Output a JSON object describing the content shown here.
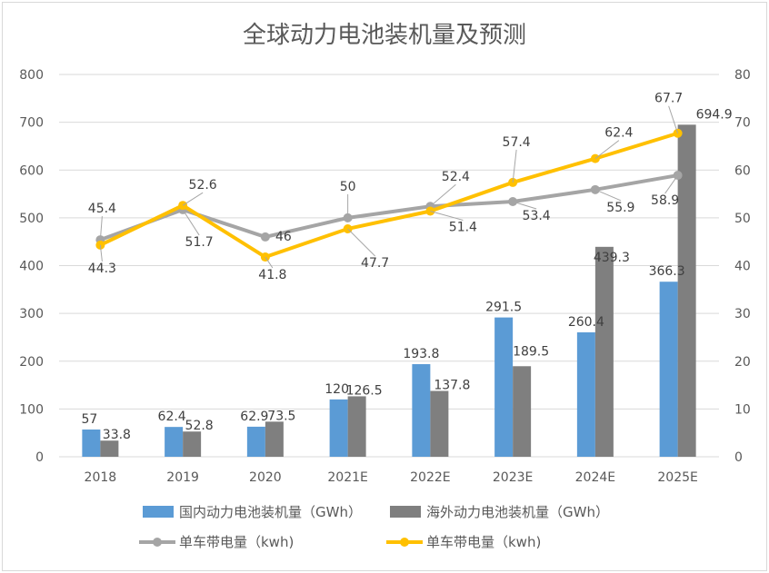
{
  "chart_data": {
    "type": "bar",
    "title": "全球动力电池装机量及预测",
    "categories": [
      "2018",
      "2019",
      "2020",
      "2021E",
      "2022E",
      "2023E",
      "2024E",
      "2025E"
    ],
    "ylim_left": [
      0,
      800
    ],
    "yticks_left": [
      "0",
      "100",
      "200",
      "300",
      "400",
      "500",
      "600",
      "700",
      "800"
    ],
    "ylim_right": [
      0,
      80
    ],
    "yticks_right": [
      "0",
      "10",
      "20",
      "30",
      "40",
      "50",
      "60",
      "70",
      "80"
    ],
    "grid": true,
    "legend_position": "bottom",
    "series": [
      {
        "name": "国内动力电池装机量（GWh）",
        "kind": "bar",
        "axis": "left",
        "color": "#5b9bd5",
        "values": [
          57,
          62.4,
          62.9,
          120,
          193.8,
          291.5,
          260.4,
          366.3
        ],
        "labels": [
          "57",
          "62.4",
          "62.9",
          "120",
          "193.8",
          "291.5",
          "260.4",
          "366.3"
        ]
      },
      {
        "name": "海外动力电池装机量（GWh）",
        "kind": "bar",
        "axis": "left",
        "color": "#7f7f7f",
        "values": [
          33.8,
          52.8,
          73.5,
          126.5,
          137.8,
          189.5,
          439.3,
          694.9
        ],
        "labels": [
          "33.8",
          "52.8",
          "73.5",
          "126.5",
          "137.8",
          "189.5",
          "439.3",
          "694.9"
        ]
      },
      {
        "name": "单车带电量（kwh)",
        "kind": "line",
        "axis": "right",
        "color": "#a5a5a5",
        "values": [
          45.4,
          51.7,
          46,
          50,
          52.4,
          53.4,
          55.9,
          58.9
        ],
        "labels": [
          "45.4",
          "51.7",
          "46",
          "50",
          "52.4",
          "53.4",
          "55.9",
          "58.9"
        ]
      },
      {
        "name": "单车带电量（kwh)",
        "kind": "line",
        "axis": "right",
        "color": "#ffc000",
        "values": [
          44.3,
          52.6,
          41.8,
          47.7,
          51.4,
          57.4,
          62.4,
          67.7
        ],
        "labels": [
          "44.3",
          "52.6",
          "41.8",
          "47.7",
          "51.4",
          "57.4",
          "62.4",
          "67.7"
        ]
      }
    ]
  }
}
